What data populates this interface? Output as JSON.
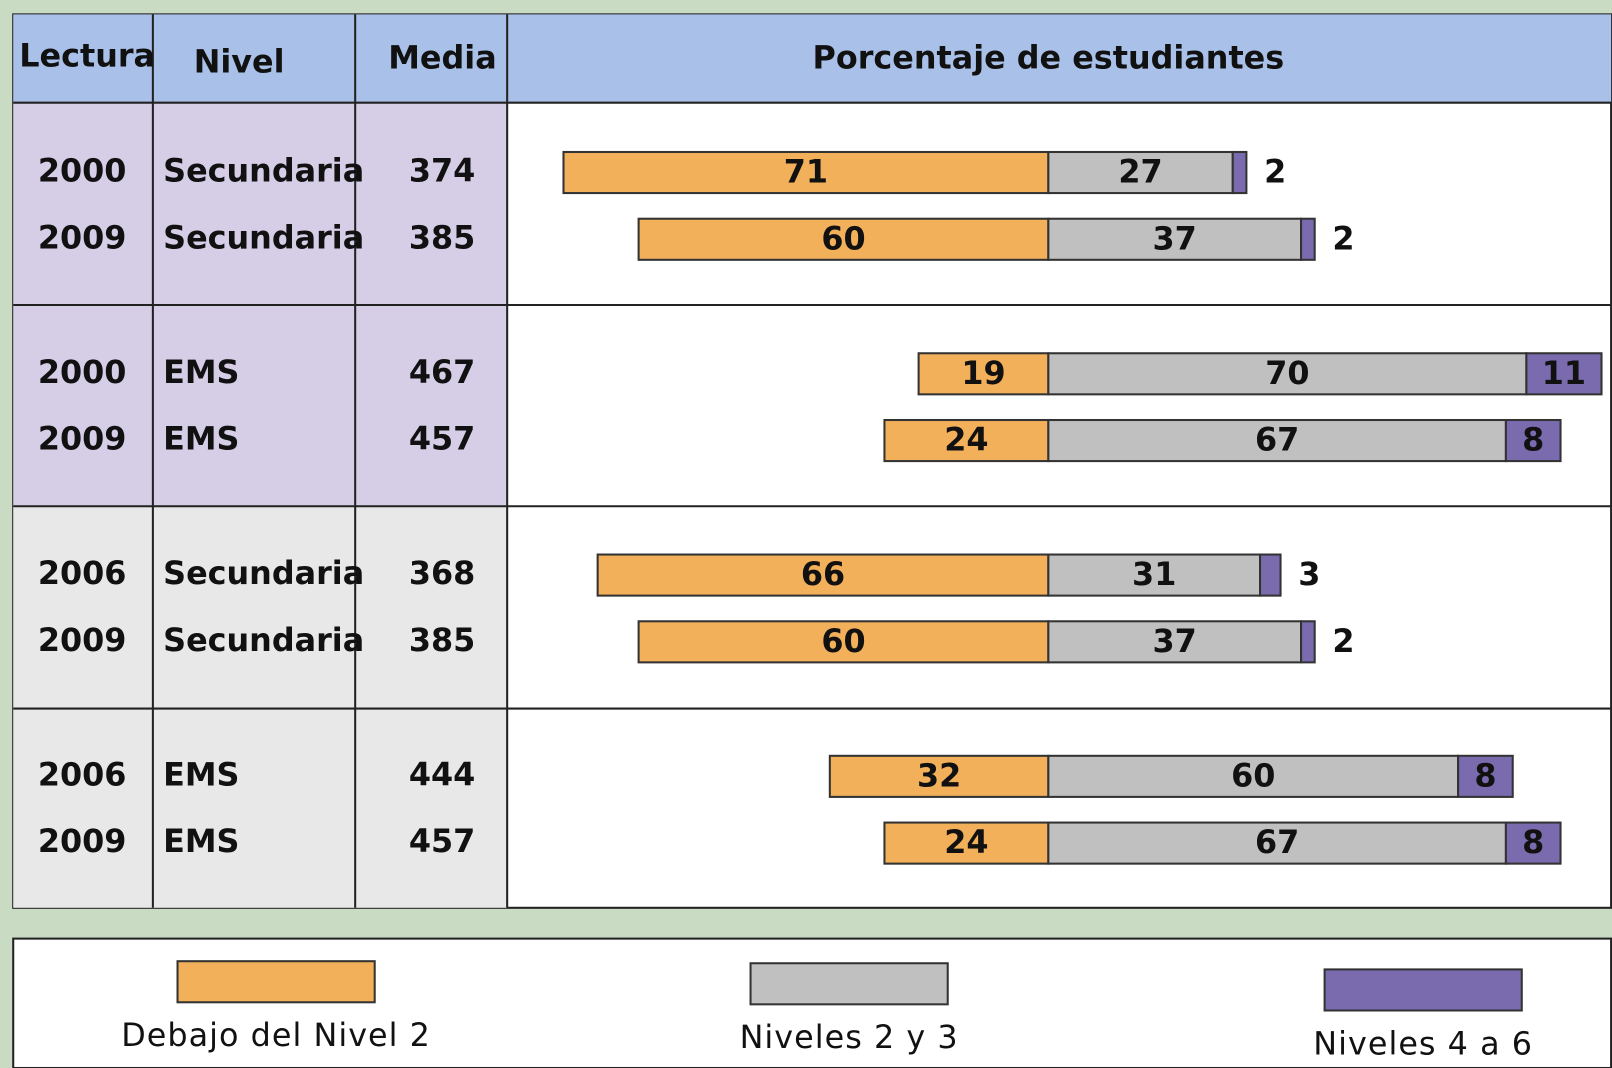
{
  "chart_data": {
    "type": "bar",
    "columns": [
      "Lectura",
      "Nivel",
      "Media",
      "Porcentaje de estudiantes"
    ],
    "lectura": [
      "2000",
      "2009",
      "2000",
      "2009",
      "2006",
      "2009",
      "2006",
      "2009"
    ],
    "nivel": [
      "Secundaria",
      "Secundaria",
      "EMS",
      "EMS",
      "Secundaria",
      "Secundaria",
      "EMS",
      "EMS"
    ],
    "media": [
      374,
      385,
      467,
      457,
      368,
      385,
      444,
      457
    ],
    "series": [
      {
        "name": "Debajo del Nivel 2",
        "color": "#f2b05a",
        "values": [
          71,
          60,
          19,
          24,
          66,
          60,
          32,
          24
        ]
      },
      {
        "name": "Niveles 2 y 3",
        "color": "#c0c0c0",
        "values": [
          27,
          37,
          70,
          67,
          31,
          37,
          60,
          67
        ]
      },
      {
        "name": "Niveles 4 a 6",
        "color": "#7a6aae",
        "values": [
          2,
          2,
          11,
          8,
          3,
          2,
          8,
          8
        ]
      }
    ]
  }
}
